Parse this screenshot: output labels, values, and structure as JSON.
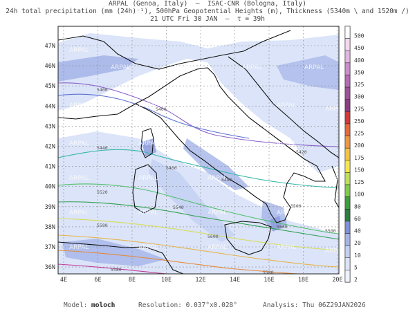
{
  "header": {
    "line1": "ARPAL (Genoa, Italy)  –  ISAC-CNR (Bologna, Italy)",
    "line2": "24h total precipitation (mm (24h)⁻¹), 500hPa Geopotential Heights (m), Thickness (5340m \\ and 1520m /)",
    "line3": "21 UTC Fri 30 JAN  –  τ = 39h"
  },
  "axes": {
    "lat_labels": [
      "47N",
      "46N",
      "45N",
      "44N",
      "43N",
      "42N",
      "41N",
      "40N",
      "39N",
      "38N",
      "37N",
      "36N"
    ],
    "lon_labels": [
      "4E",
      "6E",
      "8E",
      "10E",
      "12E",
      "14E",
      "16E",
      "18E",
      "20E"
    ]
  },
  "colorbar": {
    "labels": [
      "500",
      "450",
      "400",
      "350",
      "325",
      "300",
      "275",
      "250",
      "225",
      "200",
      "175",
      "150",
      "125",
      "100",
      "80",
      "60",
      "40",
      "20",
      "10",
      "5",
      "2"
    ],
    "colors": [
      "#ffffff",
      "#f2d7ef",
      "#e3b5e1",
      "#cf8ccf",
      "#b66ab8",
      "#a0509b",
      "#8f3b87",
      "#d73838",
      "#e8683a",
      "#f0963f",
      "#f5c242",
      "#f5e64b",
      "#bfe055",
      "#7fcc4c",
      "#3d9e3a",
      "#2c7f3f",
      "#7f8fd8",
      "#a4b4e8",
      "#c3d0f2",
      "#dbe4f8",
      "#edf2fc"
    ]
  },
  "contour_labels": [
    "5400",
    "5400",
    "5420",
    "5440",
    "5460",
    "5480",
    "5500",
    "5500",
    "5520",
    "5540",
    "5560",
    "5580",
    "5600",
    "5580",
    "5580"
  ],
  "watermark": "ARPAL",
  "footer": {
    "model_label": "Model: ",
    "model_value": "moloch",
    "resolution": "Resolution: 0.037°x0.028°",
    "analysis": "Analysis: Thu 06Z29JAN2026"
  },
  "colors": {
    "coast": "#111111",
    "grid": "#666666",
    "precip_light": "#dbe4f8",
    "precip_mid": "#a4b4e8"
  }
}
